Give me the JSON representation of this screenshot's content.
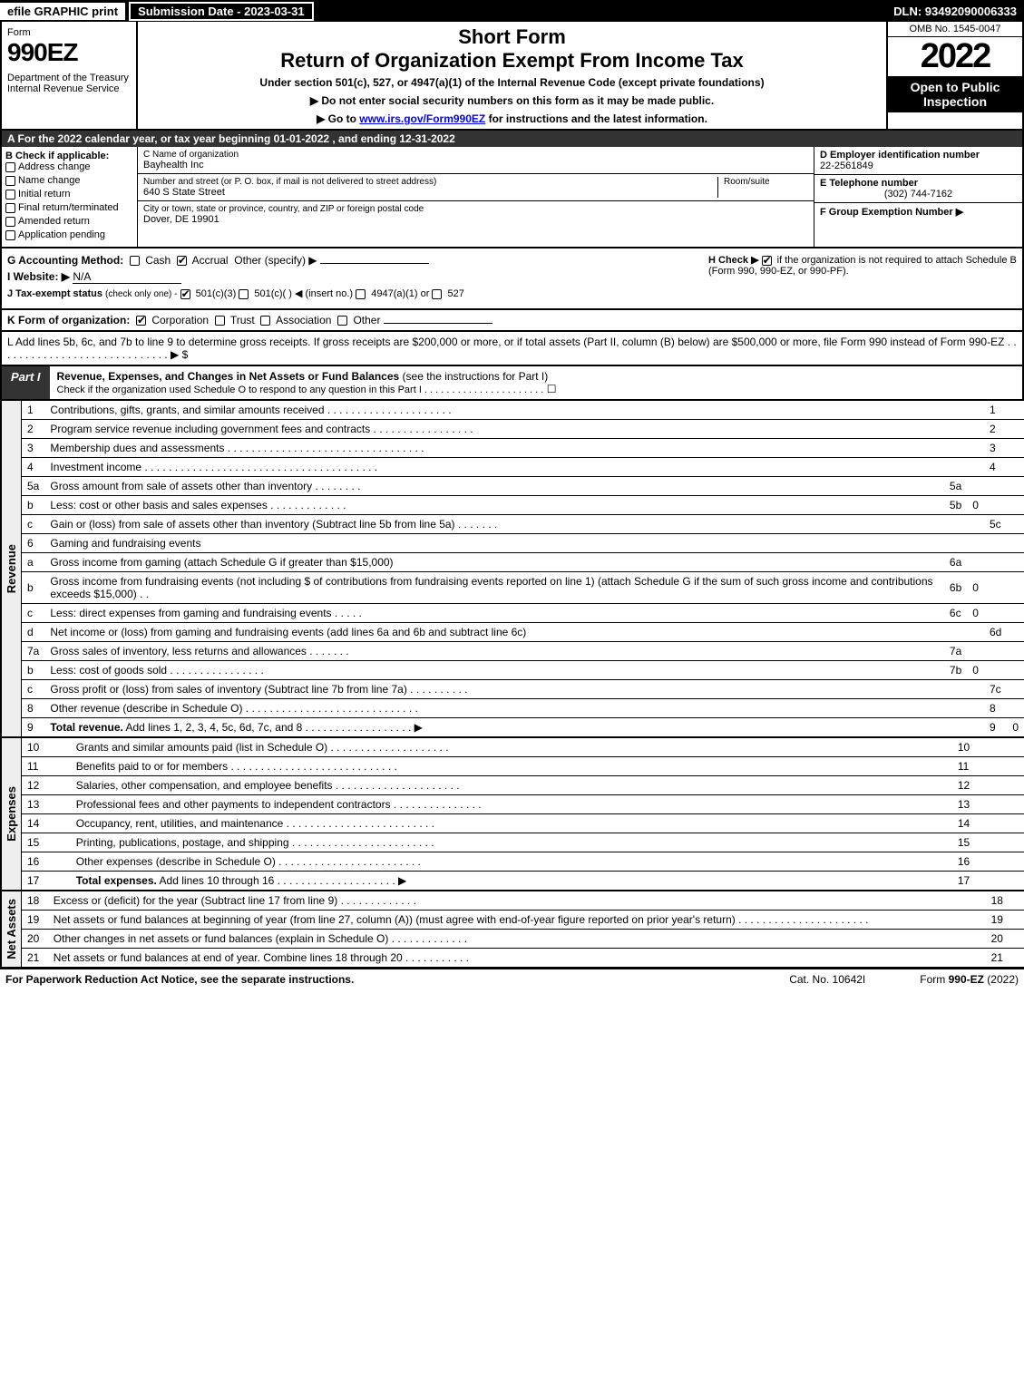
{
  "topbar": {
    "efile": "efile GRAPHIC print",
    "submission": "Submission Date - 2023-03-31",
    "dln": "DLN: 93492090006333"
  },
  "header": {
    "form_label": "Form",
    "form_number": "990EZ",
    "dept": "Department of the Treasury\nInternal Revenue Service",
    "short_form": "Short Form",
    "title": "Return of Organization Exempt From Income Tax",
    "sub1": "Under section 501(c), 527, or 4947(a)(1) of the Internal Revenue Code (except private foundations)",
    "sub2": "▶ Do not enter social security numbers on this form as it may be made public.",
    "sub3_pre": "▶ Go to ",
    "sub3_link": "www.irs.gov/Form990EZ",
    "sub3_post": " for instructions and the latest information.",
    "omb": "OMB No. 1545-0047",
    "year": "2022",
    "inspection": "Open to Public Inspection"
  },
  "section_a": "A  For the 2022 calendar year, or tax year beginning 01-01-2022  , and ending 12-31-2022",
  "box_b": {
    "header": "B  Check if applicable:",
    "items": [
      "Address change",
      "Name change",
      "Initial return",
      "Final return/terminated",
      "Amended return",
      "Application pending"
    ]
  },
  "box_c": {
    "name_label": "C Name of organization",
    "name": "Bayhealth Inc",
    "street_label": "Number and street (or P. O. box, if mail is not delivered to street address)",
    "room_label": "Room/suite",
    "street": "640 S State Street",
    "city_label": "City or town, state or province, country, and ZIP or foreign postal code",
    "city": "Dover, DE  19901"
  },
  "box_d": {
    "ein_label": "D Employer identification number",
    "ein": "22-2561849",
    "phone_label": "E Telephone number",
    "phone": "(302) 744-7162",
    "group_label": "F Group Exemption Number  ▶"
  },
  "gh": {
    "g_label": "G Accounting Method:",
    "g_cash": "Cash",
    "g_accrual": "Accrual",
    "g_other": "Other (specify) ▶",
    "i_label": "I Website: ▶",
    "i_value": "N/A",
    "j_label": "J Tax-exempt status",
    "j_note": "(check only one) -",
    "j_501c3": "501(c)(3)",
    "j_501c": "501(c)(  ) ◀ (insert no.)",
    "j_4947": "4947(a)(1) or",
    "j_527": "527",
    "h_label": "H  Check ▶",
    "h_text": "if the organization is not required to attach Schedule B (Form 990, 990-EZ, or 990-PF)."
  },
  "section_k": {
    "label": "K Form of organization:",
    "corp": "Corporation",
    "trust": "Trust",
    "assoc": "Association",
    "other": "Other"
  },
  "section_l": "L Add lines 5b, 6c, and 7b to line 9 to determine gross receipts. If gross receipts are $200,000 or more, or if total assets (Part II, column (B) below) are $500,000 or more, file Form 990 instead of Form 990-EZ . . . . . . . . . . . . . . . . . . . . . . . . . . . . . ▶ $",
  "part1": {
    "label": "Part I",
    "title_bold": "Revenue, Expenses, and Changes in Net Assets or Fund Balances",
    "title_rest": " (see the instructions for Part I)",
    "check_line": "Check if the organization used Schedule O to respond to any question in this Part I . . . . . . . . . . . . . . . . . . . . . .",
    "checkbox_val": "☐"
  },
  "revenue": {
    "side": "Revenue",
    "rows": [
      {
        "n": "1",
        "desc": "Contributions, gifts, grants, and similar amounts received . . . . . . . . . . . . . . . . . . . . .",
        "rn": "1",
        "rv": ""
      },
      {
        "n": "2",
        "desc": "Program service revenue including government fees and contracts . . . . . . . . . . . . . . . . .",
        "rn": "2",
        "rv": ""
      },
      {
        "n": "3",
        "desc": "Membership dues and assessments . . . . . . . . . . . . . . . . . . . . . . . . . . . . . . . . .",
        "rn": "3",
        "rv": ""
      },
      {
        "n": "4",
        "desc": "Investment income . . . . . . . . . . . . . . . . . . . . . . . . . . . . . . . . . . . . . . .",
        "rn": "4",
        "rv": ""
      },
      {
        "n": "5a",
        "desc": "Gross amount from sale of assets other than inventory . . . . . . . .",
        "mn": "5a",
        "mv": "",
        "shaded": true
      },
      {
        "n": "b",
        "desc": "Less: cost or other basis and sales expenses . . . . . . . . . . . . .",
        "mn": "5b",
        "mv": "0",
        "shaded": true
      },
      {
        "n": "c",
        "desc": "Gain or (loss) from sale of assets other than inventory (Subtract line 5b from line 5a) . . . . . . .",
        "rn": "5c",
        "rv": ""
      },
      {
        "n": "6",
        "desc": "Gaming and fundraising events",
        "plain": true
      },
      {
        "n": "a",
        "desc": "Gross income from gaming (attach Schedule G if greater than $15,000)",
        "mn": "6a",
        "mv": "",
        "shaded": true
      },
      {
        "n": "b",
        "desc": "Gross income from fundraising events (not including $                    of contributions from fundraising events reported on line 1) (attach Schedule G if the sum of such gross income and contributions exceeds $15,000)   . .",
        "mn": "6b",
        "mv": "0",
        "shaded": true
      },
      {
        "n": "c",
        "desc": "Less: direct expenses from gaming and fundraising events   . . . . .",
        "mn": "6c",
        "mv": "0",
        "shaded": true
      },
      {
        "n": "d",
        "desc": "Net income or (loss) from gaming and fundraising events (add lines 6a and 6b and subtract line 6c)",
        "rn": "6d",
        "rv": ""
      },
      {
        "n": "7a",
        "desc": "Gross sales of inventory, less returns and allowances . . . . . . .",
        "mn": "7a",
        "mv": "",
        "shaded": true
      },
      {
        "n": "b",
        "desc": "Less: cost of goods sold      . . . . . . . . . . . . . . . .",
        "mn": "7b",
        "mv": "0",
        "shaded": true
      },
      {
        "n": "c",
        "desc": "Gross profit or (loss) from sales of inventory (Subtract line 7b from line 7a) . . . . . . . . . .",
        "rn": "7c",
        "rv": ""
      },
      {
        "n": "8",
        "desc": "Other revenue (describe in Schedule O) . . . . . . . . . . . . . . . . . . . . . . . . . . . . .",
        "rn": "8",
        "rv": ""
      },
      {
        "n": "9",
        "desc_bold": "Total revenue.",
        "desc": " Add lines 1, 2, 3, 4, 5c, 6d, 7c, and 8  . . . . . . . . . . . . . . . . . .   ▶",
        "rn": "9",
        "rv": "0"
      }
    ]
  },
  "expenses": {
    "side": "Expenses",
    "rows": [
      {
        "n": "10",
        "desc": "Grants and similar amounts paid (list in Schedule O) . . . . . . . . . . . . . . . . . . . .",
        "rn": "10",
        "rv": ""
      },
      {
        "n": "11",
        "desc": "Benefits paid to or for members     . . . . . . . . . . . . . . . . . . . . . . . . . . . .",
        "rn": "11",
        "rv": ""
      },
      {
        "n": "12",
        "desc": "Salaries, other compensation, and employee benefits . . . . . . . . . . . . . . . . . . . . .",
        "rn": "12",
        "rv": ""
      },
      {
        "n": "13",
        "desc": "Professional fees and other payments to independent contractors . . . . . . . . . . . . . . .",
        "rn": "13",
        "rv": ""
      },
      {
        "n": "14",
        "desc": "Occupancy, rent, utilities, and maintenance . . . . . . . . . . . . . . . . . . . . . . . . .",
        "rn": "14",
        "rv": ""
      },
      {
        "n": "15",
        "desc": "Printing, publications, postage, and shipping . . . . . . . . . . . . . . . . . . . . . . . .",
        "rn": "15",
        "rv": ""
      },
      {
        "n": "16",
        "desc": "Other expenses (describe in Schedule O)    . . . . . . . . . . . . . . . . . . . . . . . .",
        "rn": "16",
        "rv": ""
      },
      {
        "n": "17",
        "desc_bold": "Total expenses.",
        "desc": " Add lines 10 through 16    . . . . . . . . . . . . . . . . . . . .  ▶",
        "rn": "17",
        "rv": ""
      }
    ]
  },
  "netassets": {
    "side": "Net Assets",
    "rows": [
      {
        "n": "18",
        "desc": "Excess or (deficit) for the year (Subtract line 17 from line 9)       . . . . . . . . . . . . .",
        "rn": "18",
        "rv": ""
      },
      {
        "n": "19",
        "desc": "Net assets or fund balances at beginning of year (from line 27, column (A)) (must agree with end-of-year figure reported on prior year's return) . . . . . . . . . . . . . . . . . . . . . .",
        "rn": "19",
        "rv": ""
      },
      {
        "n": "20",
        "desc": "Other changes in net assets or fund balances (explain in Schedule O) . . . . . . . . . . . . .",
        "rn": "20",
        "rv": ""
      },
      {
        "n": "21",
        "desc": "Net assets or fund balances at end of year. Combine lines 18 through 20 . . . . . . . . . . .",
        "rn": "21",
        "rv": ""
      }
    ]
  },
  "footer": {
    "left": "For Paperwork Reduction Act Notice, see the separate instructions.",
    "mid": "Cat. No. 10642I",
    "right_pre": "Form ",
    "right_bold": "990-EZ",
    "right_post": " (2022)"
  },
  "colors": {
    "black": "#000000",
    "white": "#ffffff",
    "dark_header": "#333333",
    "shaded": "#dddddd",
    "side_bg": "#eeeeee",
    "link": "#0000ff"
  }
}
